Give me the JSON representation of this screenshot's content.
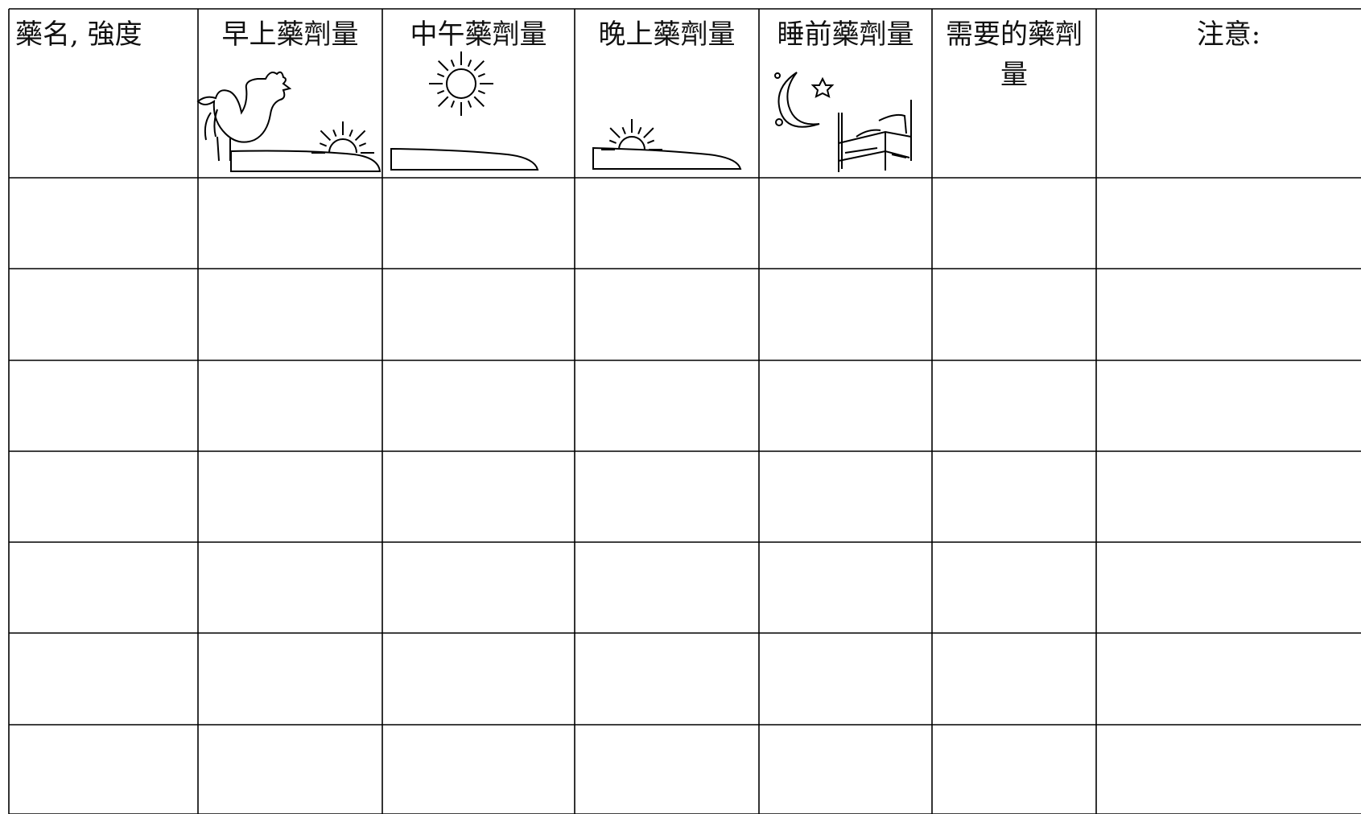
{
  "table": {
    "headers": [
      "藥名, 強度",
      "早上藥劑量",
      "中午藥劑量",
      "晚上藥劑量",
      "睡前藥劑量",
      "需要的藥劑量",
      "注意:"
    ]
  }
}
